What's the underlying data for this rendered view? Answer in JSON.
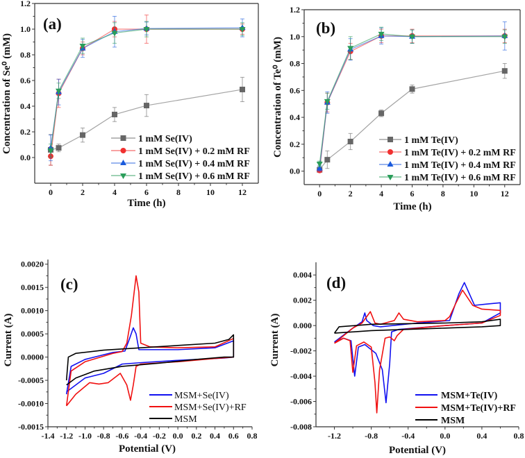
{
  "chart_data": [
    {
      "panel_label": "(a)",
      "type": "line",
      "xlabel": "Time (h)",
      "ylabel": "Concentration of Se⁰ (mM)",
      "xlim": [
        -1,
        13
      ],
      "ylim": [
        -0.2,
        1.2
      ],
      "xticks": [
        "0",
        "2",
        "4",
        "6",
        "8",
        "10",
        "12"
      ],
      "yticks": [
        "0.0",
        "0.2",
        "0.4",
        "0.6",
        "0.8",
        "1.0",
        "1.2"
      ],
      "legend_position": "bottom-right",
      "x": [
        0,
        0.5,
        2,
        4,
        6,
        12
      ],
      "series": [
        {
          "name": "1 mM Se(IV)",
          "marker": "square",
          "color": "#666666",
          "values": [
            0.06,
            0.075,
            0.175,
            0.335,
            0.405,
            0.53
          ],
          "errors": [
            0.12,
            0.03,
            0.055,
            0.055,
            0.085,
            0.095
          ]
        },
        {
          "name": "1 mM Se(IV) + 0.2 mM RF",
          "marker": "circle",
          "color": "#f03030",
          "values": [
            0.01,
            0.5,
            0.85,
            1.0,
            1.0,
            1.0
          ],
          "errors": [
            0.07,
            0.11,
            0.05,
            0.06,
            0.11,
            0.04
          ]
        },
        {
          "name": "1 mM Se(IV) + 0.4 mM RF",
          "marker": "triangle-up",
          "color": "#1a5adc",
          "values": [
            0.075,
            0.51,
            0.85,
            0.98,
            1.005,
            1.01
          ],
          "errors": [
            0.1,
            0.1,
            0.07,
            0.12,
            0.05,
            0.07
          ]
        },
        {
          "name": "1 mM Se(IV) + 0.6 mM RF",
          "marker": "triangle-down",
          "color": "#2a9d5a",
          "values": [
            0.055,
            0.52,
            0.87,
            0.97,
            1.0,
            1.0
          ],
          "errors": [
            0.05,
            0.06,
            0.06,
            0.08,
            0.06,
            0.05
          ]
        }
      ]
    },
    {
      "panel_label": "(b)",
      "type": "line",
      "xlabel": "Time (h)",
      "ylabel": "Concentration of Te⁰ (mM)",
      "xlim": [
        -1,
        13
      ],
      "ylim": [
        -0.1,
        1.2
      ],
      "xticks": [
        "0",
        "2",
        "4",
        "6",
        "8",
        "10",
        "12"
      ],
      "yticks": [
        "0.0",
        "0.2",
        "0.4",
        "0.6",
        "0.8",
        "1.0",
        "1.2"
      ],
      "legend_position": "bottom-right",
      "x": [
        0,
        0.5,
        2,
        4,
        6,
        12
      ],
      "series": [
        {
          "name": "1 mM Te(IV)",
          "marker": "square",
          "color": "#666666",
          "values": [
            0.01,
            0.085,
            0.22,
            0.43,
            0.61,
            0.745
          ],
          "errors": [
            0.01,
            0.065,
            0.06,
            0.025,
            0.03,
            0.055
          ]
        },
        {
          "name": "1 mM Te(IV) + 0.2 mM RF",
          "marker": "circle",
          "color": "#f03030",
          "values": [
            0.005,
            0.51,
            0.89,
            1.005,
            1.005,
            1.005
          ],
          "errors": [
            0.01,
            0.07,
            0.06,
            0.05,
            0.05,
            0.05
          ]
        },
        {
          "name": "1 mM Te(IV) + 0.4 mM RF",
          "marker": "triangle-up",
          "color": "#1a5adc",
          "values": [
            0.02,
            0.51,
            0.905,
            1.005,
            1.0,
            1.005
          ],
          "errors": [
            0.02,
            0.08,
            0.08,
            0.06,
            0.05,
            0.105
          ]
        },
        {
          "name": "1 mM Te(IV) + 0.6 mM RF",
          "marker": "triangle-down",
          "color": "#2a9d5a",
          "values": [
            0.055,
            0.52,
            0.915,
            1.02,
            1.0,
            1.0
          ],
          "errors": [
            0.02,
            0.06,
            0.085,
            0.05,
            0.05,
            0.05
          ]
        }
      ]
    },
    {
      "panel_label": "(c)",
      "type": "line",
      "xlabel": "Potential (V)",
      "ylabel": "Current (A)",
      "xlim": [
        -1.4,
        0.8
      ],
      "ylim": [
        -0.0015,
        0.0021
      ],
      "xticks": [
        "-1.4",
        "-1.2",
        "-1.0",
        "-0.8",
        "-0.6",
        "-0.4",
        "-0.2",
        "0.0",
        "0.2",
        "0.4",
        "0.6",
        "0.8"
      ],
      "yticks": [
        "-0.0015",
        "-0.0010",
        "-0.0005",
        "0.0000",
        "0.0005",
        "0.0010",
        "0.0015",
        "0.0020"
      ],
      "legend_position": "bottom-right",
      "series": [
        {
          "name": "MSM+Se(IV)",
          "color": "#1010f0",
          "points": [
            [
              -1.2,
              -0.0008
            ],
            [
              -1.15,
              -0.0002
            ],
            [
              -1.0,
              -5e-05
            ],
            [
              -0.7,
              0.0001
            ],
            [
              -0.57,
              0.00013
            ],
            [
              -0.52,
              0.0004
            ],
            [
              -0.48,
              0.00063
            ],
            [
              -0.45,
              0.0005
            ],
            [
              -0.42,
              0.00016
            ],
            [
              0,
              0.00016
            ],
            [
              0.4,
              0.0002
            ],
            [
              0.6,
              0.00035
            ],
            [
              0.6,
              0.0
            ],
            [
              0.5,
              -2e-05
            ],
            [
              0,
              -7e-05
            ],
            [
              -0.4,
              -0.00012
            ],
            [
              -0.6,
              -0.00015
            ],
            [
              -0.8,
              -0.00035
            ],
            [
              -1.0,
              -0.00045
            ],
            [
              -1.2,
              -0.00075
            ]
          ]
        },
        {
          "name": "MSM+Se(IV)+RF",
          "color": "#f01010",
          "points": [
            [
              -1.2,
              -0.00105
            ],
            [
              -1.15,
              -0.0003
            ],
            [
              -1.0,
              -0.0001
            ],
            [
              -0.7,
              8e-05
            ],
            [
              -0.6,
              0.00012
            ],
            [
              -0.55,
              0.0003
            ],
            [
              -0.5,
              0.0009
            ],
            [
              -0.45,
              0.00175
            ],
            [
              -0.42,
              0.0014
            ],
            [
              -0.4,
              0.0003
            ],
            [
              -0.3,
              0.00022
            ],
            [
              0,
              0.0002
            ],
            [
              0.4,
              0.00022
            ],
            [
              0.6,
              0.0004
            ],
            [
              0.6,
              0.0
            ],
            [
              0.4,
              -3e-05
            ],
            [
              0,
              -0.0001
            ],
            [
              -0.4,
              -0.00015
            ],
            [
              -0.45,
              -0.0002
            ],
            [
              -0.48,
              -0.0006
            ],
            [
              -0.51,
              -0.00093
            ],
            [
              -0.55,
              -0.0006
            ],
            [
              -0.62,
              -0.00035
            ],
            [
              -0.75,
              -0.00055
            ],
            [
              -0.85,
              -0.00058
            ],
            [
              -0.95,
              -0.00055
            ],
            [
              -1.1,
              -0.0008
            ],
            [
              -1.2,
              -0.00105
            ]
          ]
        },
        {
          "name": "MSM",
          "color": "#000000",
          "points": [
            [
              -1.2,
              -0.0005
            ],
            [
              -1.18,
              0.0
            ],
            [
              -1.1,
              8e-05
            ],
            [
              -0.8,
              0.00015
            ],
            [
              -0.4,
              0.0002
            ],
            [
              0,
              0.00025
            ],
            [
              0.4,
              0.0003
            ],
            [
              0.55,
              0.00038
            ],
            [
              0.6,
              0.00048
            ],
            [
              0.6,
              0.0
            ],
            [
              0.5,
              0.0
            ],
            [
              0.2,
              -5e-05
            ],
            [
              -0.2,
              -0.00013
            ],
            [
              -0.6,
              -0.0002
            ],
            [
              -0.9,
              -0.0003
            ],
            [
              -1.1,
              -0.00045
            ],
            [
              -1.2,
              -0.0006
            ]
          ]
        }
      ]
    },
    {
      "panel_label": "(d)",
      "type": "line",
      "xlabel": "Potential (V)",
      "ylabel": "Current (A)",
      "xlim": [
        -1.4,
        0.8
      ],
      "ylim": [
        -0.008,
        0.005
      ],
      "xticks": [
        "-1.2",
        "-0.8",
        "-0.4",
        "0.0",
        "0.4",
        "0.8"
      ],
      "yticks": [
        "-0.008",
        "-0.006",
        "-0.004",
        "-0.002",
        "0.000",
        "0.002",
        "0.004"
      ],
      "legend_position": "bottom-right",
      "series": [
        {
          "name": "MSM+Te(IV)",
          "color": "#1010f0",
          "points": [
            [
              -1.2,
              -0.0013
            ],
            [
              -1.1,
              -0.001
            ],
            [
              -1.02,
              -0.0012
            ],
            [
              -0.98,
              -0.004
            ],
            [
              -0.94,
              -0.0017
            ],
            [
              -0.87,
              -0.0015
            ],
            [
              -0.75,
              -0.0022
            ],
            [
              -0.68,
              -0.0035
            ],
            [
              -0.64,
              -0.0061
            ],
            [
              -0.6,
              -0.003
            ],
            [
              -0.58,
              -0.0005
            ],
            [
              -0.5,
              -0.0003
            ],
            [
              0,
              0.0
            ],
            [
              0.4,
              0.0002
            ],
            [
              0.6,
              0.001
            ],
            [
              0.6,
              0.0018
            ],
            [
              0.45,
              0.0017
            ],
            [
              0.32,
              0.0016
            ],
            [
              0.21,
              0.0034
            ],
            [
              0.15,
              0.0025
            ],
            [
              0.05,
              0.0004
            ],
            [
              -0.3,
              0.0002
            ],
            [
              -0.7,
              -0.0001
            ],
            [
              -0.78,
              0.0
            ],
            [
              -0.85,
              0.0004
            ],
            [
              -0.87,
              0.001
            ],
            [
              -0.9,
              0.0003
            ],
            [
              -1.0,
              -0.0002
            ],
            [
              -1.2,
              -0.0013
            ]
          ]
        },
        {
          "name": "MSM+Te(IV)+RF",
          "color": "#f01010",
          "points": [
            [
              -1.2,
              -0.0014
            ],
            [
              -1.1,
              -0.001
            ],
            [
              -1.03,
              -0.0012
            ],
            [
              -1.0,
              -0.0037
            ],
            [
              -0.96,
              -0.0016
            ],
            [
              -0.88,
              -0.0013
            ],
            [
              -0.8,
              -0.0017
            ],
            [
              -0.76,
              -0.0045
            ],
            [
              -0.74,
              -0.0069
            ],
            [
              -0.71,
              -0.0035
            ],
            [
              -0.65,
              -0.001
            ],
            [
              -0.6,
              -0.0009
            ],
            [
              -0.55,
              -0.0012
            ],
            [
              -0.52,
              -0.0008
            ],
            [
              -0.45,
              -0.0003
            ],
            [
              0,
              0.0
            ],
            [
              0.4,
              0.0002
            ],
            [
              0.6,
              0.0008
            ],
            [
              0.6,
              0.0012
            ],
            [
              0.4,
              0.0013
            ],
            [
              0.3,
              0.0016
            ],
            [
              0.19,
              0.0028
            ],
            [
              0.12,
              0.0018
            ],
            [
              0.05,
              0.0007
            ],
            [
              0.0,
              0.0004
            ],
            [
              -0.3,
              0.0003
            ],
            [
              -0.45,
              0.0005
            ],
            [
              -0.5,
              0.001
            ],
            [
              -0.55,
              0.0004
            ],
            [
              -0.7,
              0.0001
            ],
            [
              -0.76,
              0.0002
            ],
            [
              -0.81,
              0.0011
            ],
            [
              -0.85,
              0.0007
            ],
            [
              -0.9,
              0.0002
            ],
            [
              -1.0,
              -0.0002
            ],
            [
              -1.2,
              -0.0014
            ]
          ]
        },
        {
          "name": "MSM",
          "color": "#000000",
          "points": [
            [
              -1.2,
              -0.0006
            ],
            [
              -1.15,
              -0.0001
            ],
            [
              -0.8,
              0.0001
            ],
            [
              0,
              0.0002
            ],
            [
              0.4,
              0.0003
            ],
            [
              0.6,
              0.0005
            ],
            [
              0.6,
              0.0
            ],
            [
              0.4,
              -0.0001
            ],
            [
              0,
              -0.0002
            ],
            [
              -0.8,
              -0.0004
            ],
            [
              -1.2,
              -0.0006
            ]
          ]
        }
      ]
    }
  ]
}
